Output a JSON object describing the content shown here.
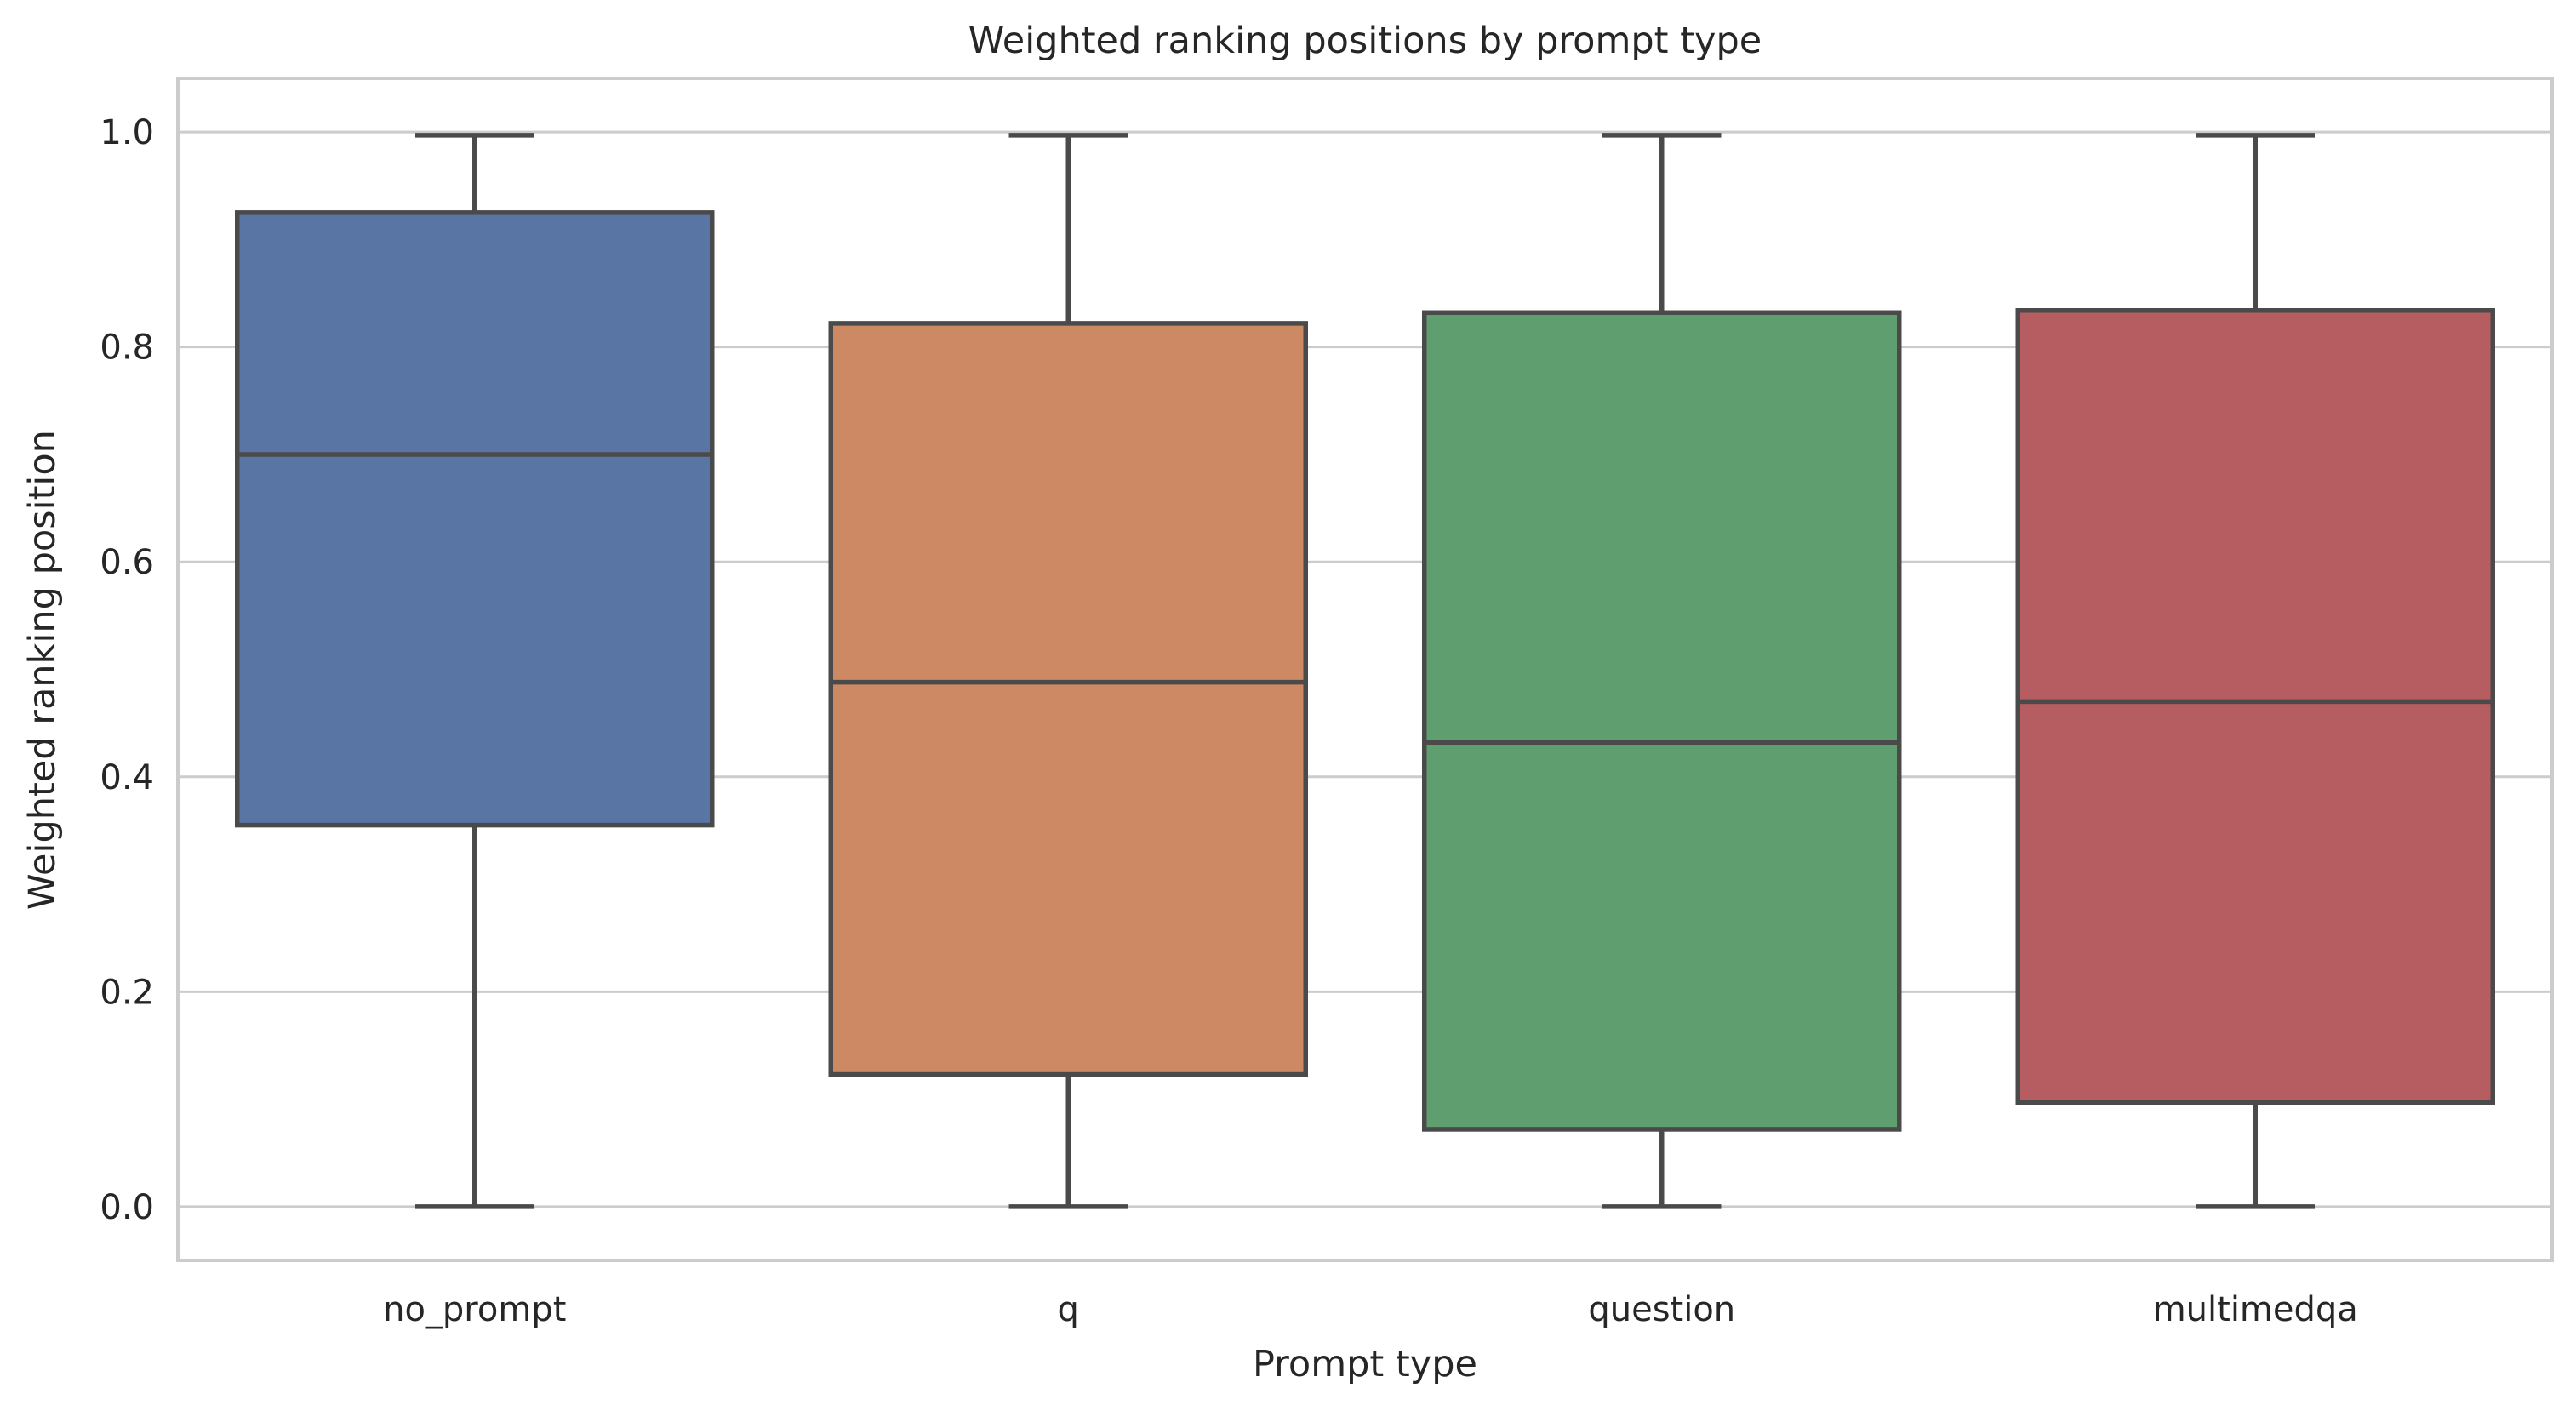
{
  "chart_data": {
    "type": "box",
    "title": "Weighted ranking positions by prompt type",
    "xlabel": "Prompt type",
    "ylabel": "Weighted ranking position",
    "ylim": [
      -0.05,
      1.05
    ],
    "yticks": [
      "0.0",
      "0.2",
      "0.4",
      "0.6",
      "0.8",
      "1.0"
    ],
    "grid": "horizontal",
    "categories": [
      "no_prompt",
      "q",
      "question",
      "multimedqa"
    ],
    "colors": [
      "#5875a4",
      "#cc8963",
      "#5f9e6e",
      "#b55d60"
    ],
    "boxes": [
      {
        "name": "no_prompt",
        "min": 0.0,
        "q1": 0.355,
        "median": 0.7,
        "q3": 0.925,
        "max": 0.997
      },
      {
        "name": "q",
        "min": 0.0,
        "q1": 0.123,
        "median": 0.488,
        "q3": 0.822,
        "max": 0.997
      },
      {
        "name": "question",
        "min": 0.0,
        "q1": 0.072,
        "median": 0.432,
        "q3": 0.832,
        "max": 0.997
      },
      {
        "name": "multimedqa",
        "min": 0.0,
        "q1": 0.097,
        "median": 0.47,
        "q3": 0.834,
        "max": 0.997
      }
    ]
  }
}
